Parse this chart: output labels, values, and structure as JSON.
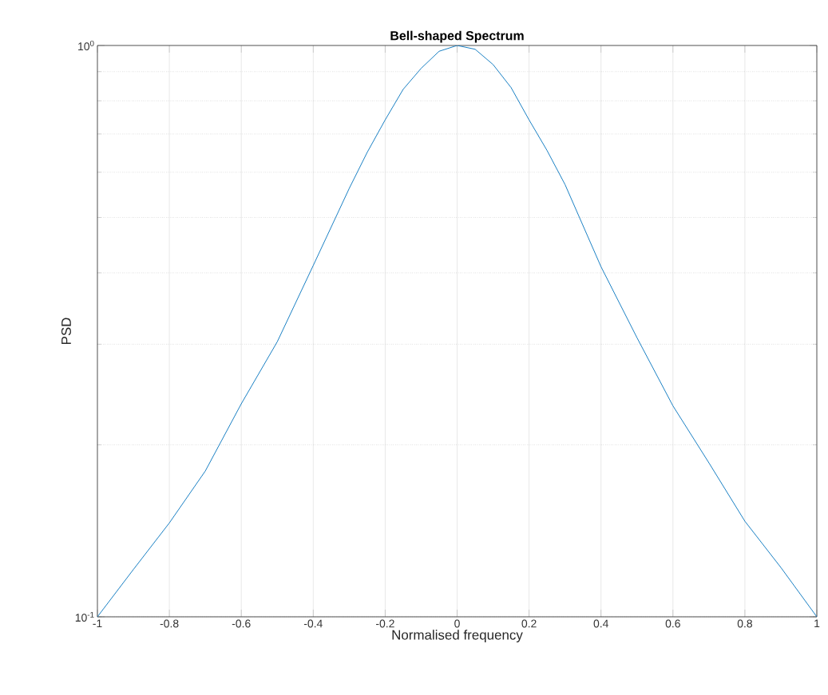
{
  "chart_data": {
    "type": "line",
    "title": "Bell-shaped Spectrum",
    "xlabel": "Normalised frequency",
    "ylabel": "PSD",
    "log": "y",
    "grid": true,
    "line_style": "solid",
    "x": [
      -1,
      -0.9,
      -0.8,
      -0.7,
      -0.6,
      -0.5,
      -0.4,
      -0.3,
      -0.25,
      -0.2,
      -0.15,
      -0.1,
      -0.05,
      0,
      0.05,
      0.1,
      0.15,
      0.2,
      0.25,
      0.3,
      0.4,
      0.5,
      0.6,
      0.7,
      0.8,
      0.9,
      1
    ],
    "series": [
      {
        "color": "#0072bd",
        "values": [
          0.1,
          0.121,
          0.146,
          0.18,
          0.236,
          0.303,
          0.412,
          0.562,
          0.65,
          0.741,
          0.838,
          0.912,
          0.977,
          1,
          0.985,
          0.926,
          0.844,
          0.741,
          0.655,
          0.571,
          0.41,
          0.308,
          0.234,
          0.186,
          0.147,
          0.122,
          0.1
        ]
      }
    ],
    "xlim": [
      -1,
      1
    ],
    "ylim": [
      0.1,
      1
    ],
    "xticks": [
      -1,
      -0.8,
      -0.6,
      -0.4,
      -0.2,
      0,
      0.2,
      0.4,
      0.6,
      0.8,
      1
    ],
    "yticks": [
      {
        "value": 0.1,
        "label": "10$^{-1}$"
      },
      {
        "value": 1,
        "label": "10$^{0}$"
      }
    ]
  }
}
